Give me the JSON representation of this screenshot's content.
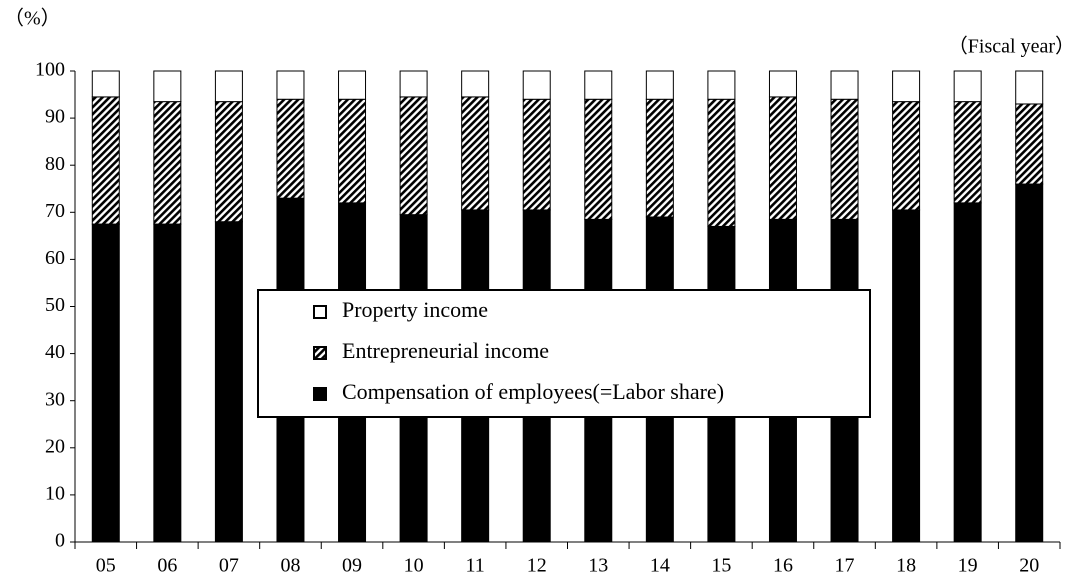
{
  "chart_data": {
    "type": "stacked_bar",
    "y_label": "（%）",
    "x_label": "（Fiscal year）",
    "categories": [
      "05",
      "06",
      "07",
      "08",
      "09",
      "10",
      "11",
      "12",
      "13",
      "14",
      "15",
      "16",
      "17",
      "18",
      "19",
      "20"
    ],
    "series": [
      {
        "name": "Compensation of employees(=Labor share)",
        "color": "#000000",
        "pattern": "solid",
        "values": [
          67.5,
          67.5,
          68,
          73,
          72,
          69.5,
          70.5,
          70.5,
          68.5,
          69,
          67,
          68.5,
          68.5,
          70.5,
          72,
          76
        ]
      },
      {
        "name": "Entrepreneurial income",
        "color": "#000000",
        "pattern": "hatch",
        "values": [
          27,
          26,
          25.5,
          21,
          22,
          25,
          24,
          23.5,
          25.5,
          25,
          27,
          26,
          25.5,
          23,
          21.5,
          17
        ]
      },
      {
        "name": "Property income",
        "color": "#ffffff",
        "pattern": "solid",
        "values": [
          5.5,
          6.5,
          6.5,
          6,
          6,
          5.5,
          5.5,
          6,
          6,
          6,
          6,
          5.5,
          6,
          6.5,
          6.5,
          7
        ]
      }
    ],
    "ylim": [
      0,
      100
    ],
    "yticks": [
      0,
      10,
      20,
      30,
      40,
      50,
      60,
      70,
      80,
      90,
      100
    ],
    "legend_order": [
      2,
      1,
      0
    ]
  }
}
